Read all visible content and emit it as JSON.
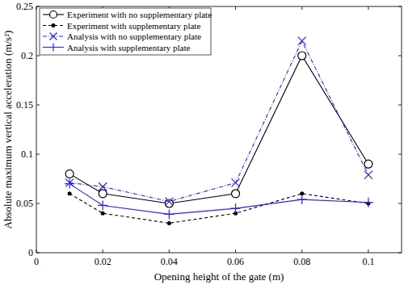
{
  "chart_data": {
    "type": "line",
    "x_label": "Opening height of the gate (m)",
    "y_label": "Absolute maximum vertical acceleration (m/s²)",
    "x": [
      0.01,
      0.02,
      0.04,
      0.06,
      0.08,
      0.1
    ],
    "xlim": [
      0,
      0.11
    ],
    "xticks": [
      0,
      0.02,
      0.04,
      0.06,
      0.08,
      0.1
    ],
    "ylim": [
      0,
      0.25
    ],
    "yticks": [
      0,
      0.05,
      0.1,
      0.15,
      0.2,
      0.25
    ],
    "grid": false,
    "legend": "upper left",
    "series": [
      {
        "name": "Experiment with no supplementary plate",
        "color": "#000000",
        "marker": "circle",
        "line_style": "solid",
        "values": [
          0.08,
          0.06,
          0.05,
          0.06,
          0.2,
          0.09
        ]
      },
      {
        "name": "Experiment with supplementary plate",
        "color": "#000000",
        "marker": "dot",
        "line_style": "dashed",
        "values": [
          0.06,
          0.04,
          0.03,
          0.04,
          0.06,
          0.05
        ]
      },
      {
        "name": "Analysis with no supplementary plate",
        "color": "#2626d9",
        "marker": "x",
        "line_style": "dash-dot",
        "values": [
          0.071,
          0.067,
          0.052,
          0.071,
          0.215,
          0.079
        ]
      },
      {
        "name": "Analysis with supplementary plate",
        "color": "#2626d9",
        "marker": "plus",
        "line_style": "solid",
        "values": [
          0.07,
          0.048,
          0.039,
          0.045,
          0.054,
          0.051
        ]
      }
    ]
  }
}
